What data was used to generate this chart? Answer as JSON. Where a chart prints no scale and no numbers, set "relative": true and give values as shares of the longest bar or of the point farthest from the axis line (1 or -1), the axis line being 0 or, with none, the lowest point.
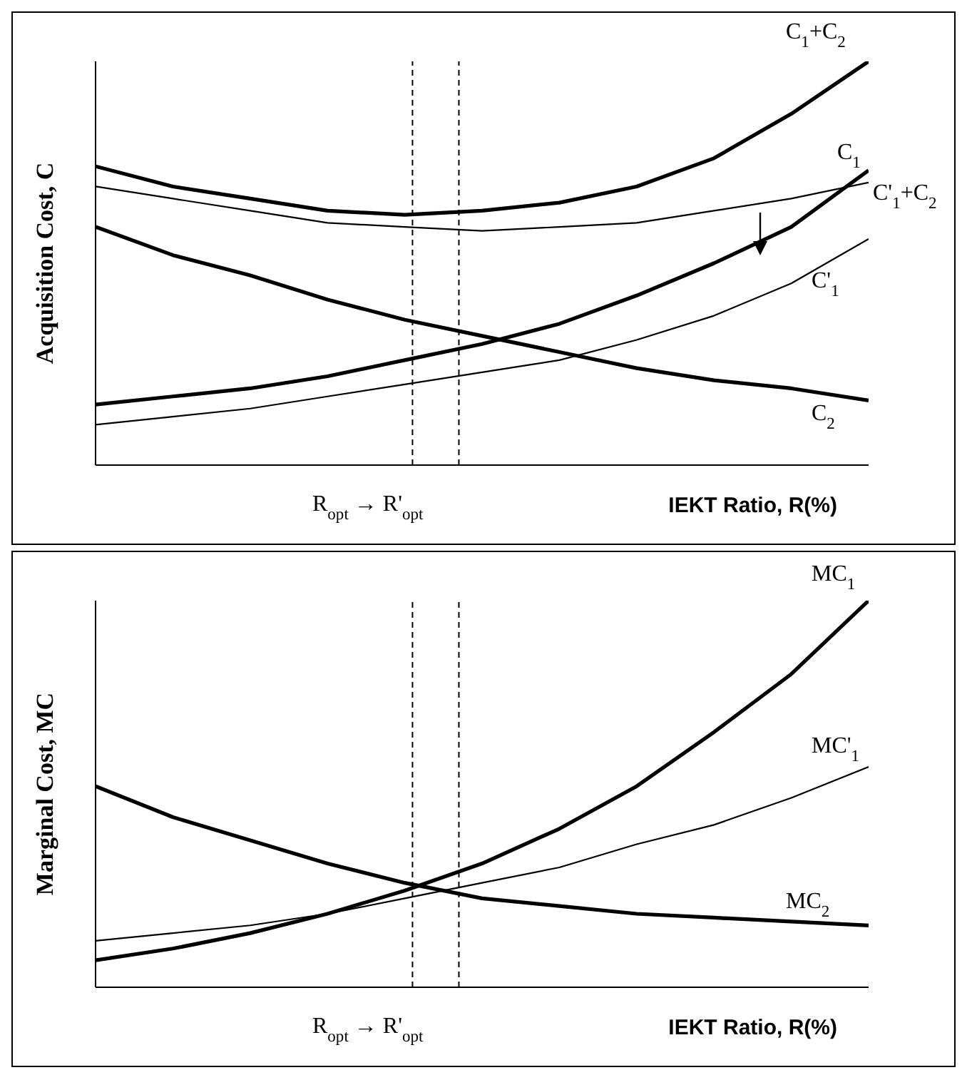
{
  "chart_data": [
    {
      "type": "line",
      "relative": true,
      "ylabel": "Acquisition Cost, C",
      "xlabel": "IEKT Ratio, R(%)",
      "categories": [
        null,
        null,
        null,
        null,
        null,
        null,
        null,
        null,
        null,
        null,
        null
      ],
      "series": [
        {
          "name": "C$_{1}$+C$_{2}$",
          "color": "#000000",
          "values": [
            0.74,
            0.69,
            0.66,
            0.63,
            0.62,
            0.63,
            0.65,
            0.69,
            0.76,
            0.87,
            1
          ]
        },
        {
          "name": "C$_{1}$",
          "color": "#000000",
          "values": [
            0.15,
            0.17,
            0.19,
            0.22,
            0.26,
            0.3,
            0.35,
            0.42,
            0.5,
            0.59,
            0.73
          ]
        },
        {
          "name": "C$_{2}$",
          "color": "#000000",
          "values": [
            0.59,
            0.52,
            0.47,
            0.41,
            0.36,
            0.32,
            0.28,
            0.24,
            0.21,
            0.19,
            0.16
          ]
        },
        {
          "name": "C'$_{1}$+C$_{2}$",
          "color": "#000000",
          "values": [
            0.69,
            0.66,
            0.63,
            0.6,
            0.59,
            0.58,
            0.59,
            0.6,
            0.63,
            0.66,
            0.7
          ]
        },
        {
          "name": "C'$_{1}$",
          "color": "#000000",
          "values": [
            0.1,
            0.12,
            0.14,
            0.17,
            0.2,
            0.23,
            0.26,
            0.31,
            0.37,
            0.45,
            0.56
          ]
        }
      ],
      "annotations": [
        "R$_{opt}$ → R'$_{opt}$"
      ],
      "tick_labels": false
    },
    {
      "type": "line",
      "relative": true,
      "ylabel": "Marginal Cost, MC",
      "xlabel": "IEKT Ratio, R(%)",
      "categories": [
        null,
        null,
        null,
        null,
        null,
        null,
        null,
        null,
        null,
        null,
        null
      ],
      "series": [
        {
          "name": "MC$_{1}$",
          "color": "#000000",
          "values": [
            0.07,
            0.1,
            0.14,
            0.19,
            0.25,
            0.32,
            0.41,
            0.52,
            0.66,
            0.81,
            1
          ]
        },
        {
          "name": "MC$_{2}$",
          "color": "#000000",
          "values": [
            0.52,
            0.44,
            0.38,
            0.32,
            0.27,
            0.23,
            0.21,
            0.19,
            0.18,
            0.17,
            0.16
          ]
        },
        {
          "name": "MC'$_{1}$",
          "color": "#000000",
          "values": [
            0.12,
            0.14,
            0.16,
            0.19,
            0.23,
            0.27,
            0.31,
            0.37,
            0.42,
            0.49,
            0.57
          ]
        }
      ],
      "annotations": [
        "R$_{opt}$ → R'$_{opt}$"
      ],
      "tick_labels": false
    }
  ]
}
